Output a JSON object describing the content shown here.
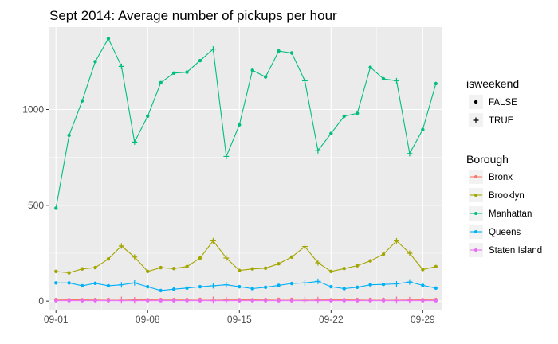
{
  "chart_data": {
    "type": "line",
    "title": "Sept 2014: Average number of pickups per hour",
    "xlabel": "",
    "ylabel": "",
    "x_ticks": [
      "09-01",
      "09-08",
      "09-15",
      "09-22",
      "09-29"
    ],
    "y_ticks": [
      0,
      500,
      1000
    ],
    "xlim": [
      0.5,
      30.5
    ],
    "ylim": [
      -45,
      1430
    ],
    "days": [
      1,
      2,
      3,
      4,
      5,
      6,
      7,
      8,
      9,
      10,
      11,
      12,
      13,
      14,
      15,
      16,
      17,
      18,
      19,
      20,
      21,
      22,
      23,
      24,
      25,
      26,
      27,
      28,
      29,
      30
    ],
    "isweekend": [
      false,
      false,
      false,
      false,
      false,
      true,
      true,
      false,
      false,
      false,
      false,
      false,
      true,
      true,
      false,
      false,
      false,
      false,
      false,
      true,
      true,
      false,
      false,
      false,
      false,
      false,
      true,
      true,
      false,
      false
    ],
    "series": [
      {
        "name": "Bronx",
        "color": "#F8766D",
        "values": [
          8,
          7,
          7,
          8,
          9,
          9,
          7,
          7,
          8,
          8,
          8,
          9,
          9,
          8,
          7,
          7,
          8,
          9,
          9,
          9,
          8,
          7,
          7,
          8,
          9,
          9,
          9,
          8,
          7,
          8
        ]
      },
      {
        "name": "Brooklyn",
        "color": "#A3A500",
        "values": [
          155,
          148,
          168,
          175,
          220,
          288,
          230,
          155,
          175,
          170,
          180,
          225,
          315,
          225,
          160,
          168,
          172,
          195,
          230,
          285,
          200,
          155,
          170,
          185,
          210,
          245,
          315,
          250,
          165,
          180
        ]
      },
      {
        "name": "Manhattan",
        "color": "#00BF7D",
        "values": [
          485,
          865,
          1045,
          1250,
          1370,
          1225,
          830,
          965,
          1140,
          1190,
          1195,
          1255,
          1315,
          755,
          920,
          1205,
          1170,
          1305,
          1295,
          1150,
          785,
          875,
          965,
          980,
          1220,
          1160,
          1150,
          770,
          895,
          1135
        ]
      },
      {
        "name": "Queens",
        "color": "#00B0F6",
        "values": [
          95,
          95,
          80,
          93,
          80,
          85,
          95,
          75,
          55,
          62,
          68,
          75,
          80,
          85,
          75,
          65,
          72,
          82,
          92,
          95,
          103,
          75,
          65,
          72,
          85,
          87,
          90,
          100,
          82,
          68
        ]
      },
      {
        "name": "Staten Island",
        "color": "#E76BF3",
        "values": [
          2,
          2,
          2,
          2,
          2,
          2,
          2,
          2,
          2,
          2,
          2,
          2,
          2,
          2,
          2,
          2,
          2,
          2,
          2,
          2,
          2,
          2,
          2,
          2,
          2,
          2,
          2,
          2,
          2,
          2
        ]
      }
    ],
    "legend": {
      "shape_title": "isweekend",
      "shape_items": [
        {
          "label": "FALSE",
          "shape": "dot"
        },
        {
          "label": "TRUE",
          "shape": "plus"
        }
      ],
      "color_title": "Borough"
    },
    "panel_background": "#EBEBEB",
    "grid": true,
    "legend_position": "right"
  }
}
